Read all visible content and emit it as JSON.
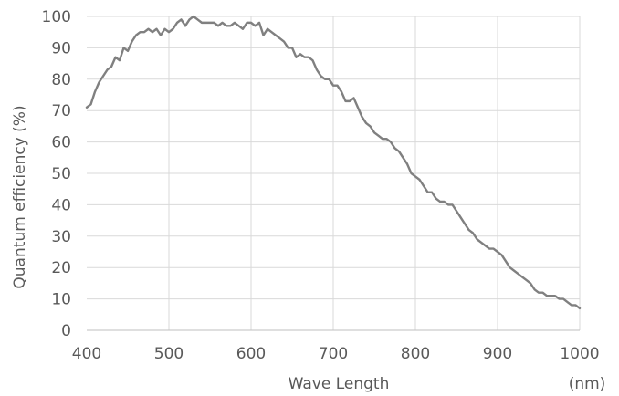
{
  "chart_data": {
    "type": "line",
    "title": "",
    "xlabel": "Wave Length",
    "xunit_label": "(nm)",
    "ylabel": "Quantum efficiency (%)",
    "xlim": [
      400,
      1000
    ],
    "ylim": [
      0,
      100
    ],
    "xticks": [
      400,
      500,
      600,
      700,
      800,
      900,
      1000
    ],
    "yticks": [
      0,
      10,
      20,
      30,
      40,
      50,
      60,
      70,
      80,
      90,
      100
    ],
    "grid": true,
    "legend": "none",
    "colors": {
      "line": "#808080",
      "grid": "#d9d9d9",
      "text": "#595959"
    },
    "series": [
      {
        "x": [
          400,
          405,
          410,
          415,
          420,
          425,
          430,
          435,
          440,
          445,
          450,
          455,
          460,
          465,
          470,
          475,
          480,
          485,
          490,
          495,
          500,
          505,
          510,
          515,
          520,
          525,
          530,
          535,
          540,
          545,
          550,
          555,
          560,
          565,
          570,
          575,
          580,
          585,
          590,
          595,
          600,
          605,
          610,
          615,
          620,
          625,
          630,
          635,
          640,
          645,
          650,
          655,
          660,
          665,
          670,
          675,
          680,
          685,
          690,
          695,
          700,
          705,
          710,
          715,
          720,
          725,
          730,
          735,
          740,
          745,
          750,
          755,
          760,
          765,
          770,
          775,
          780,
          785,
          790,
          795,
          800,
          805,
          810,
          815,
          820,
          825,
          830,
          835,
          840,
          845,
          850,
          855,
          860,
          865,
          870,
          875,
          880,
          885,
          890,
          895,
          900,
          905,
          910,
          915,
          920,
          925,
          930,
          935,
          940,
          945,
          950,
          955,
          960,
          965,
          970,
          975,
          980,
          985,
          990,
          995,
          1000
        ],
        "values": [
          71,
          72,
          76,
          79,
          81,
          83,
          84,
          87,
          86,
          90,
          89,
          92,
          94,
          95,
          95,
          96,
          95,
          96,
          94,
          96,
          95,
          96,
          98,
          99,
          97,
          99,
          100,
          99,
          98,
          98,
          98,
          98,
          97,
          98,
          97,
          97,
          98,
          97,
          96,
          98,
          98,
          97,
          98,
          94,
          96,
          95,
          94,
          93,
          92,
          90,
          90,
          87,
          88,
          87,
          87,
          86,
          83,
          81,
          80,
          80,
          78,
          78,
          76,
          73,
          73,
          74,
          71,
          68,
          66,
          65,
          63,
          62,
          61,
          61,
          60,
          58,
          57,
          55,
          53,
          50,
          49,
          48,
          46,
          44,
          44,
          42,
          41,
          41,
          40,
          40,
          38,
          36,
          34,
          32,
          31,
          29,
          28,
          27,
          26,
          26,
          25,
          24,
          22,
          20,
          19,
          18,
          17,
          16,
          15,
          13,
          12,
          12,
          11,
          11,
          11,
          10,
          10,
          9,
          8,
          8,
          7
        ]
      }
    ]
  }
}
